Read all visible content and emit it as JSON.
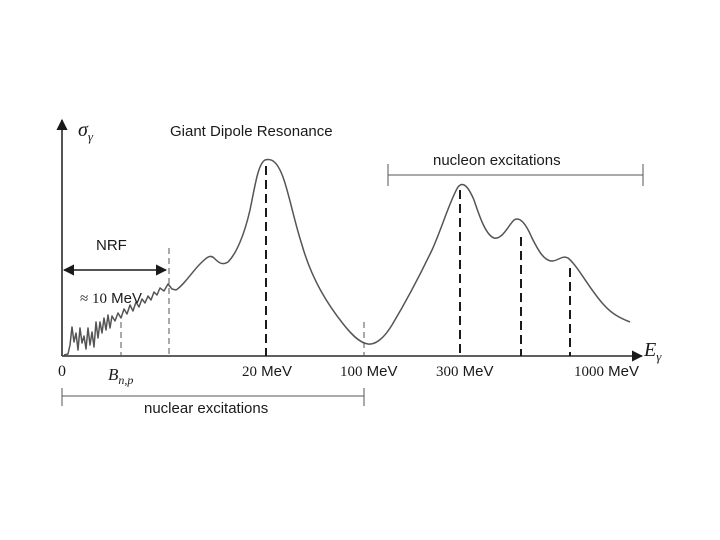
{
  "axes": {
    "y_label_main": "σ",
    "y_label_sub": "γ",
    "x_label_main": "E",
    "x_label_sub": "γ"
  },
  "title": "Giant Dipole Resonance",
  "annotations": {
    "nrf": "NRF",
    "approx_prefix": "≈ 10",
    "approx_unit": "MeV",
    "nuclear": "nuclear excitations",
    "nucleon": "nucleon excitations"
  },
  "ticks": {
    "zero": "0",
    "b_main": "B",
    "b_sub": "n,p",
    "t20_num": "20",
    "t20_unit": "MeV",
    "t100_num": "100",
    "t100_unit": "MeV",
    "t300_num": "300",
    "t300_unit": "MeV",
    "t1000_num": "1000",
    "t1000_unit": "MeV"
  }
}
